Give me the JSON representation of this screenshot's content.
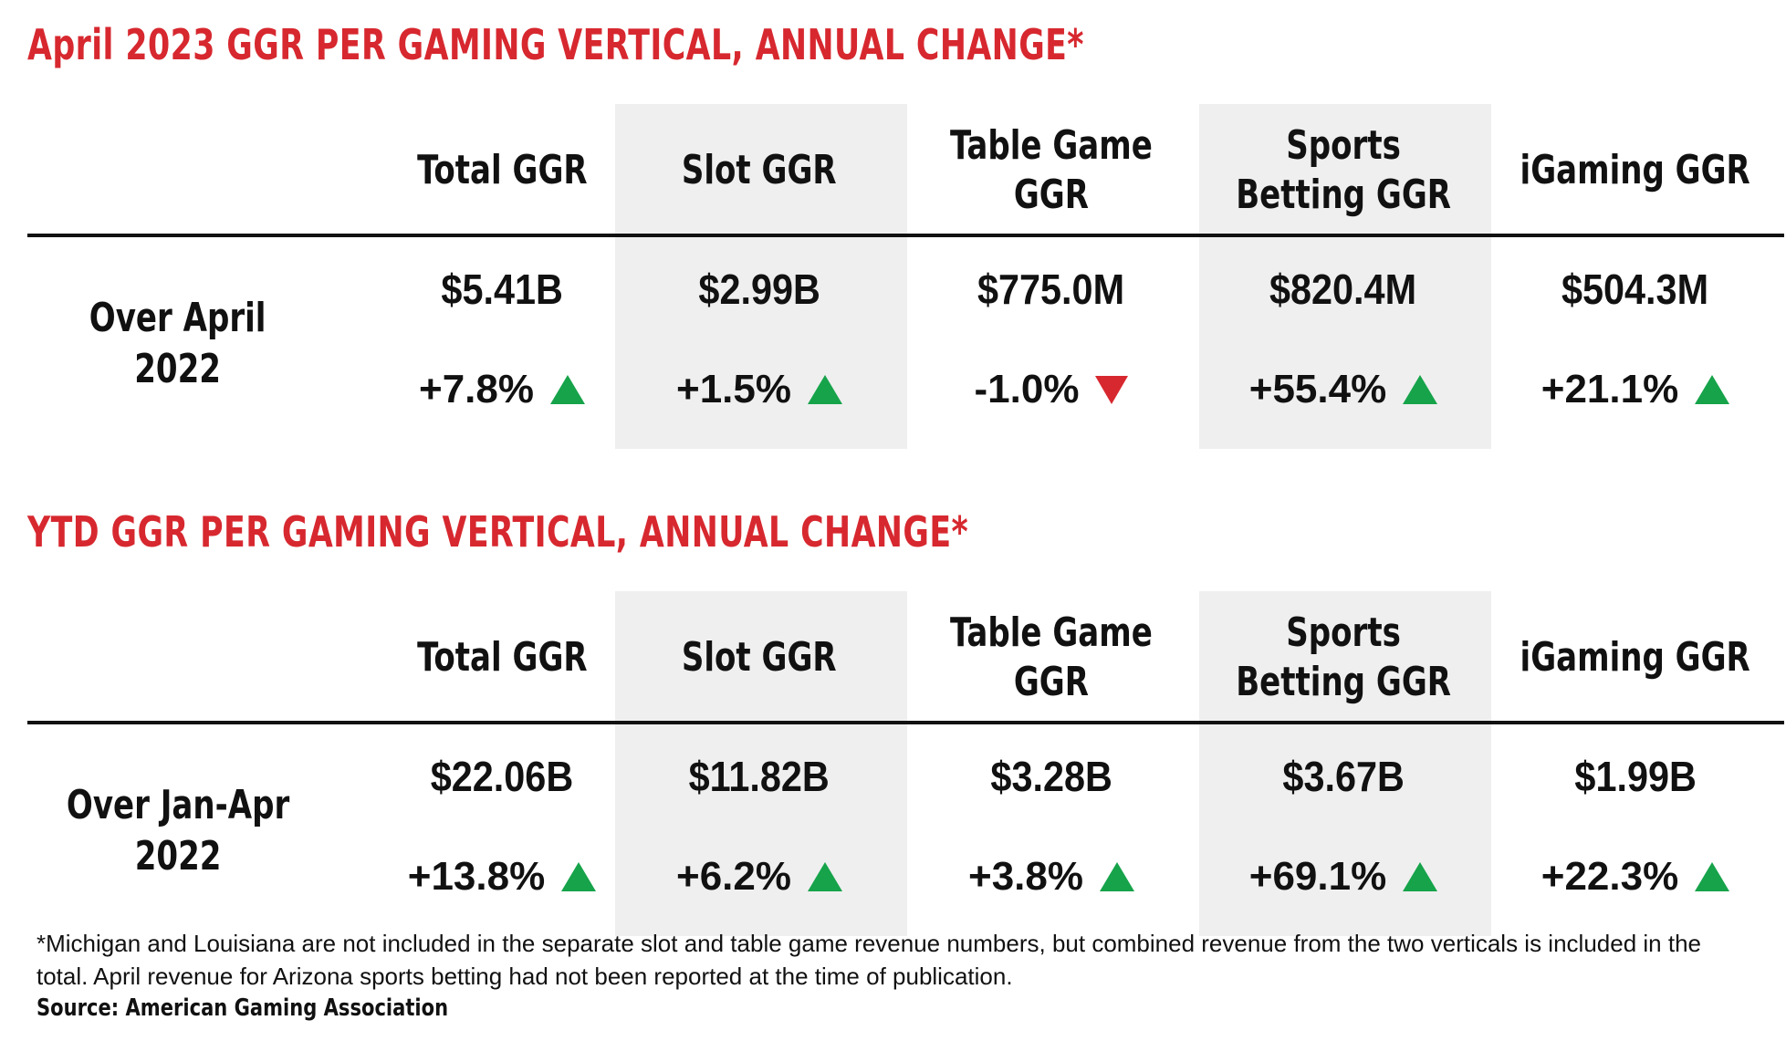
{
  "chart_data": [
    {
      "type": "table",
      "title": "April 2023 GGR PER GAMING VERTICAL, ANNUAL CHANGE*",
      "columns": [
        "Total GGR",
        "Slot GGR",
        "Table Game GGR",
        "Sports Betting GGR",
        "iGaming GGR"
      ],
      "row_label": "Over April 2022",
      "values": [
        "$5.41B",
        "$2.99B",
        "$775.0M",
        "$820.4M",
        "$504.3M"
      ],
      "changes": [
        "+7.8%",
        "+1.5%",
        "-1.0%",
        "+55.4%",
        "+21.1%"
      ],
      "change_pct": [
        7.8,
        1.5,
        -1.0,
        55.4,
        21.1
      ],
      "direction": [
        "up",
        "up",
        "down",
        "up",
        "up"
      ],
      "shaded_columns": [
        1,
        3
      ]
    },
    {
      "type": "table",
      "title": "YTD GGR PER GAMING VERTICAL, ANNUAL CHANGE*",
      "columns": [
        "Total GGR",
        "Slot GGR",
        "Table Game GGR",
        "Sports Betting GGR",
        "iGaming GGR"
      ],
      "row_label": "Over Jan-Apr 2022",
      "values": [
        "$22.06B",
        "$11.82B",
        "$3.28B",
        "$3.67B",
        "$1.99B"
      ],
      "changes": [
        "+13.8%",
        "+6.2%",
        "+3.8%",
        "+69.1%",
        "+22.3%"
      ],
      "change_pct": [
        13.8,
        6.2,
        3.8,
        69.1,
        22.3
      ],
      "direction": [
        "up",
        "up",
        "up",
        "up",
        "up"
      ],
      "shaded_columns": [
        1,
        3
      ]
    }
  ],
  "headers": [
    [
      "Total GGR"
    ],
    [
      "Slot GGR"
    ],
    [
      "Table Game",
      "GGR"
    ],
    [
      "Sports",
      "Betting GGR"
    ],
    [
      "iGaming GGR"
    ]
  ],
  "row_labels": [
    [
      "Over April",
      "2022"
    ],
    [
      "Over Jan-Apr",
      "2022"
    ]
  ],
  "footnote": "*Michigan and Louisiana are not included in the separate slot and table game revenue numbers, but combined revenue from the two verticals is included in the total. April revenue for Arizona sports betting had not been reported at the time of publication.",
  "source": "Source: American Gaming Association",
  "colors": {
    "title": "#d7282f",
    "up": "#16a34a",
    "down": "#d7282f",
    "shade": "#efefef"
  }
}
